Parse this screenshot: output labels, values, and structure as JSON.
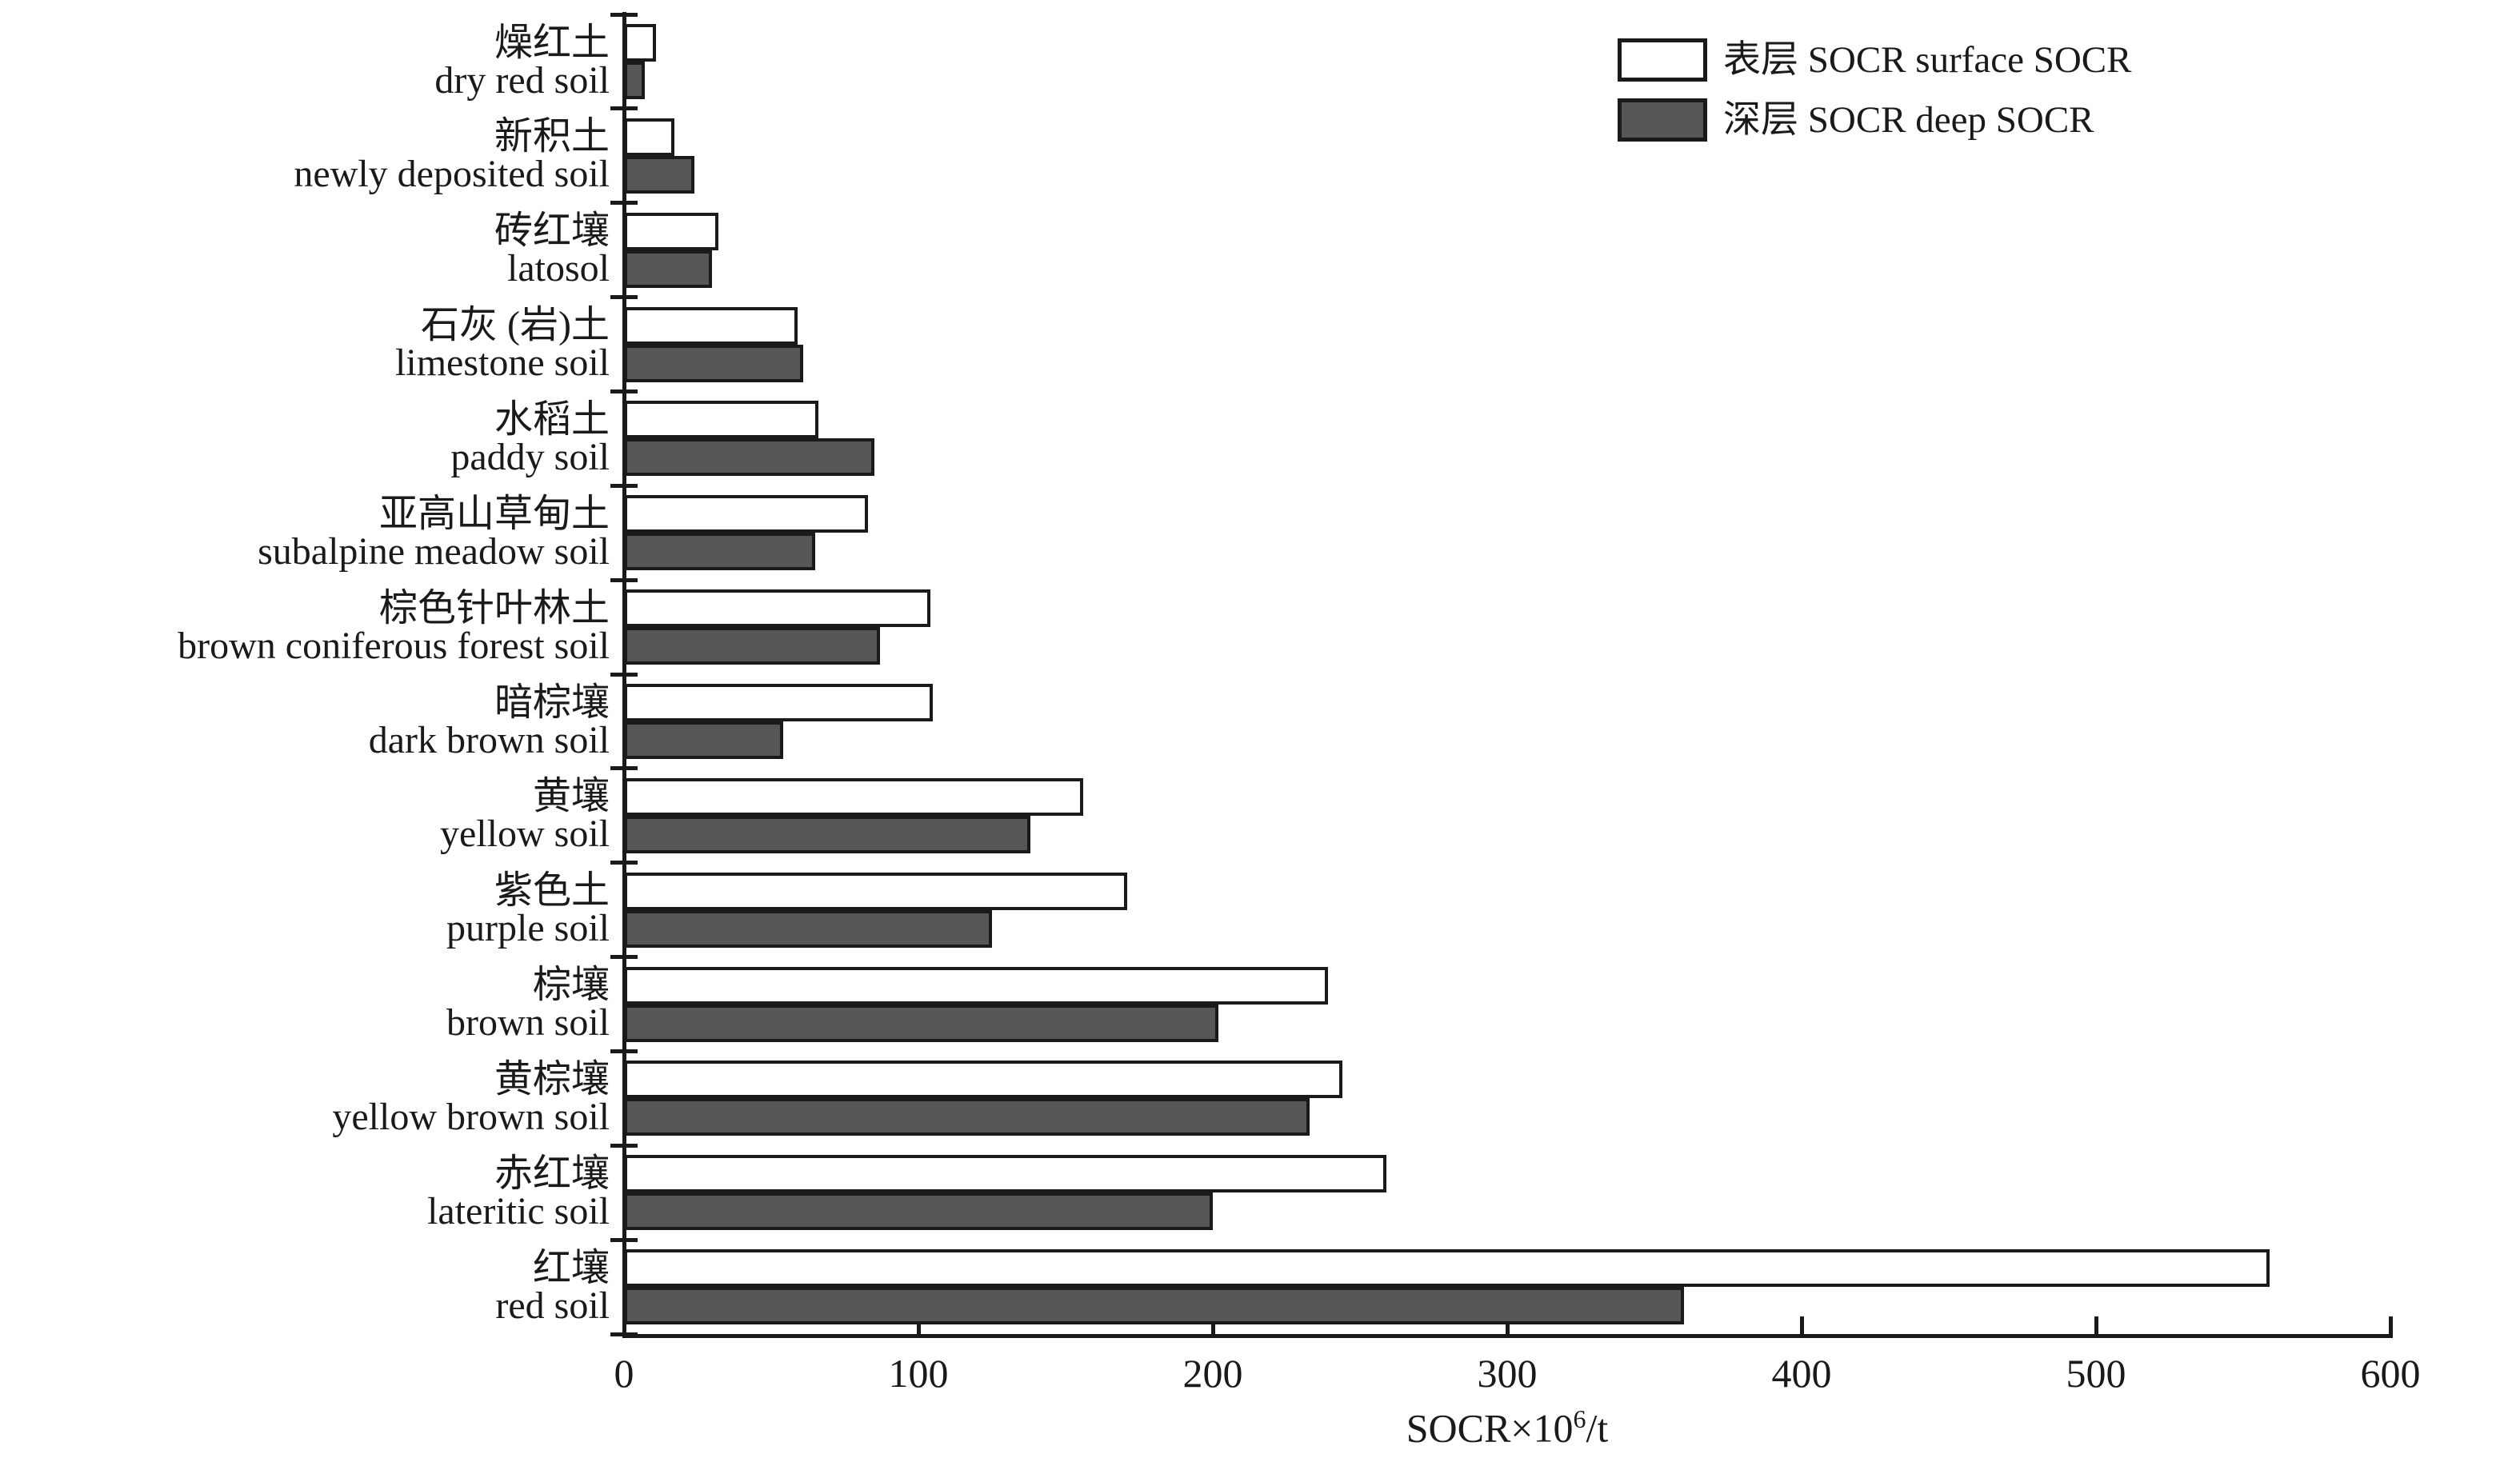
{
  "chart_data": {
    "type": "bar",
    "orientation": "horizontal",
    "xlabel_prefix": "SOCR×10",
    "xlabel_sup": "6",
    "xlabel_suffix": "/t",
    "xlim": [
      0,
      600
    ],
    "xticks": [
      0,
      100,
      200,
      300,
      400,
      500,
      600
    ],
    "grid": false,
    "legend_position": "top-right",
    "legend": [
      {
        "key": "surface",
        "label": "表层 SOCR surface SOCR",
        "color": "#ffffff"
      },
      {
        "key": "deep",
        "label": "深层 SOCR deep SOCR",
        "color": "#565656"
      }
    ],
    "categories": [
      {
        "zh": "燥红土",
        "en": "dry red soil"
      },
      {
        "zh": "新积土",
        "en": "newly deposited soil"
      },
      {
        "zh": "砖红壤",
        "en": "latosol"
      },
      {
        "zh": "石灰 (岩)土",
        "en": "limestone soil"
      },
      {
        "zh": "水稻土",
        "en": "paddy soil"
      },
      {
        "zh": "亚高山草甸土",
        "en": "subalpine meadow soil"
      },
      {
        "zh": "棕色针叶林土",
        "en": "brown coniferous forest soil"
      },
      {
        "zh": "暗棕壤",
        "en": "dark brown soil"
      },
      {
        "zh": "黄壤",
        "en": "yellow soil"
      },
      {
        "zh": "紫色土",
        "en": "purple soil"
      },
      {
        "zh": "棕壤",
        "en": "brown soil"
      },
      {
        "zh": "黄棕壤",
        "en": "yellow brown soil"
      },
      {
        "zh": "赤红壤",
        "en": "lateritic soil"
      },
      {
        "zh": "红壤",
        "en": "red soil"
      }
    ],
    "series": [
      {
        "name": "表层 SOCR surface SOCR",
        "key": "surface",
        "values": [
          11,
          17,
          32,
          59,
          66,
          83,
          104,
          105,
          156,
          171,
          239,
          244,
          259,
          559
        ]
      },
      {
        "name": "深层 SOCR deep SOCR",
        "key": "deep",
        "values": [
          7,
          24,
          30,
          61,
          85,
          65,
          87,
          54,
          138,
          125,
          202,
          233,
          200,
          360
        ]
      }
    ]
  },
  "colors": {
    "background": "#ffffff",
    "axis": "#1a1a1a",
    "surface_fill": "#ffffff",
    "deep_fill": "#565656",
    "bar_border": "#1a1a1a",
    "text": "#1a1a1a"
  }
}
